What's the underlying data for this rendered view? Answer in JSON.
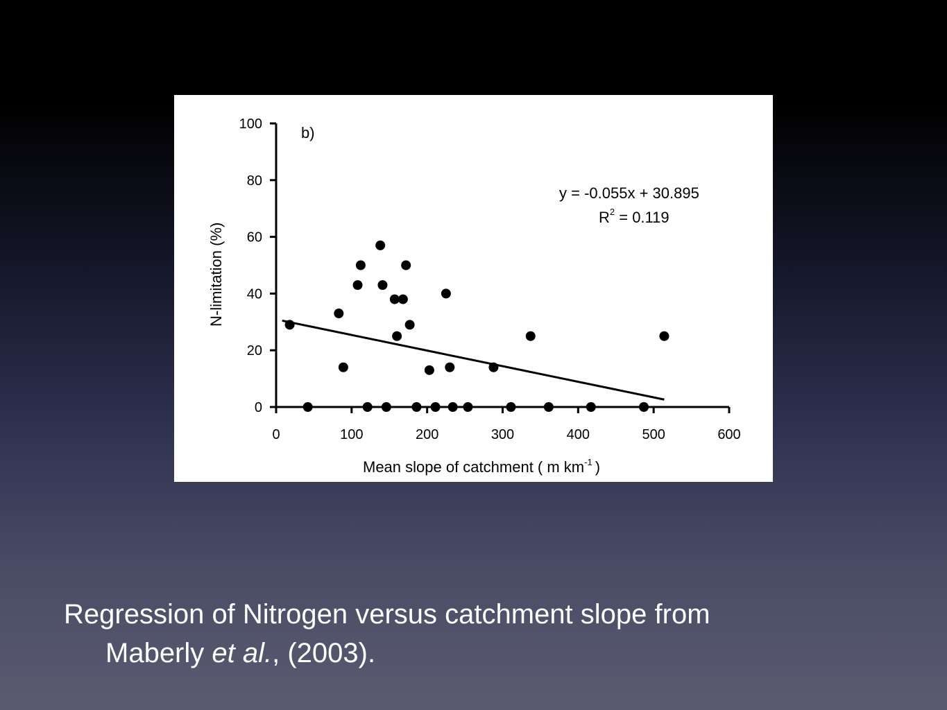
{
  "slide": {
    "caption": {
      "line1": "Regression of Nitrogen versus catchment slope from",
      "line2_pre": "Maberly ",
      "line2_italic": "et al.",
      "line2_post": ", (2003)."
    }
  },
  "chart_data": {
    "type": "scatter",
    "panel_label": "b)",
    "xlabel": "Mean slope of catchment ( m km",
    "xlabel_sup": "-1",
    "xlabel_end": ")",
    "ylabel": "N-limitation  (%)",
    "xlim": [
      0,
      600
    ],
    "ylim": [
      0,
      100
    ],
    "xticks": [
      0,
      100,
      200,
      300,
      400,
      500,
      600
    ],
    "yticks": [
      0,
      20,
      40,
      60,
      80,
      100
    ],
    "points": [
      {
        "x": 18,
        "y": 29
      },
      {
        "x": 42,
        "y": 0
      },
      {
        "x": 83,
        "y": 33
      },
      {
        "x": 89,
        "y": 14
      },
      {
        "x": 108,
        "y": 43
      },
      {
        "x": 112,
        "y": 50
      },
      {
        "x": 121,
        "y": 0
      },
      {
        "x": 138,
        "y": 57
      },
      {
        "x": 141,
        "y": 43
      },
      {
        "x": 146,
        "y": 0
      },
      {
        "x": 157,
        "y": 38
      },
      {
        "x": 160,
        "y": 25
      },
      {
        "x": 168,
        "y": 38
      },
      {
        "x": 172,
        "y": 50
      },
      {
        "x": 177,
        "y": 29
      },
      {
        "x": 186,
        "y": 0
      },
      {
        "x": 203,
        "y": 13
      },
      {
        "x": 211,
        "y": 0
      },
      {
        "x": 225,
        "y": 40
      },
      {
        "x": 230,
        "y": 14
      },
      {
        "x": 234,
        "y": 0
      },
      {
        "x": 254,
        "y": 0
      },
      {
        "x": 288,
        "y": 14
      },
      {
        "x": 311,
        "y": 0
      },
      {
        "x": 337,
        "y": 25
      },
      {
        "x": 361,
        "y": 0
      },
      {
        "x": 417,
        "y": 0
      },
      {
        "x": 487,
        "y": 0
      },
      {
        "x": 514,
        "y": 25
      }
    ],
    "regression": {
      "equation": "y = -0.055x + 30.895",
      "r2_label": "R",
      "r2_sup": "2",
      "r2_value": " = 0.119",
      "slope": -0.055,
      "intercept": 30.895,
      "x_range": [
        8,
        514
      ]
    }
  }
}
